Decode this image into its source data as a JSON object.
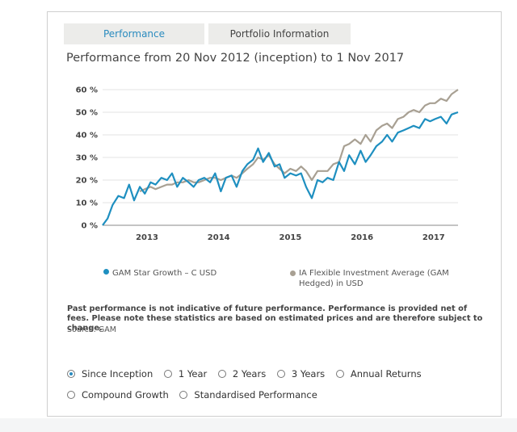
{
  "tabs": [
    {
      "label": "Performance",
      "active": true
    },
    {
      "label": "Portfolio Information",
      "active": false
    }
  ],
  "title": "Performance from 20 Nov 2012 (inception) to 1 Nov 2017",
  "chart_data": {
    "type": "line",
    "title": "Performance from 20 Nov 2012 (inception) to 1 Nov 2017",
    "xlabel": "",
    "ylabel": "",
    "ylim": [
      0,
      60
    ],
    "xlim": [
      2012.88,
      2017.84
    ],
    "y_ticks": [
      0,
      10,
      20,
      30,
      40,
      50,
      60
    ],
    "y_tick_labels": [
      "0 %",
      "10 %",
      "20 %",
      "30 %",
      "40 %",
      "50 %",
      "60 %"
    ],
    "x_tick_positions": [
      2013.5,
      2014.5,
      2015.5,
      2016.5,
      2017.5
    ],
    "x_tick_labels": [
      "2013",
      "2014",
      "2015",
      "2016",
      "2017"
    ],
    "grid": "horizontal",
    "series": [
      {
        "name": "GAM Star Growth – C USD",
        "color": "#1e8fc0",
        "x": [
          2012.88,
          2012.95,
          2013.02,
          2013.1,
          2013.18,
          2013.25,
          2013.32,
          2013.4,
          2013.47,
          2013.55,
          2013.62,
          2013.7,
          2013.78,
          2013.85,
          2013.92,
          2014.0,
          2014.08,
          2014.15,
          2014.22,
          2014.3,
          2014.38,
          2014.45,
          2014.53,
          2014.6,
          2014.68,
          2014.75,
          2014.83,
          2014.9,
          2014.98,
          2015.05,
          2015.12,
          2015.2,
          2015.28,
          2015.35,
          2015.42,
          2015.5,
          2015.58,
          2015.65,
          2015.72,
          2015.8,
          2015.88,
          2015.95,
          2016.02,
          2016.1,
          2016.18,
          2016.25,
          2016.32,
          2016.4,
          2016.48,
          2016.55,
          2016.62,
          2016.7,
          2016.78,
          2016.85,
          2016.92,
          2017.0,
          2017.08,
          2017.15,
          2017.22,
          2017.3,
          2017.38,
          2017.45,
          2017.52,
          2017.6,
          2017.68,
          2017.75,
          2017.84
        ],
        "values": [
          0,
          3,
          9,
          13,
          12,
          18,
          11,
          17,
          14,
          19,
          18,
          21,
          20,
          23,
          17,
          21,
          19,
          17,
          20,
          21,
          19,
          23,
          15,
          21,
          22,
          17,
          24,
          27,
          29,
          34,
          28,
          32,
          26,
          27,
          21,
          23,
          22,
          23,
          17,
          12,
          20,
          19,
          21,
          20,
          28,
          24,
          31,
          27,
          33,
          28,
          31,
          35,
          37,
          40,
          37,
          41,
          42,
          43,
          44,
          43,
          47,
          46,
          47,
          48,
          45,
          49,
          50
        ]
      },
      {
        "name": "IA Flexible Investment Average (GAM Hedged) in USD",
        "color": "#a8a093",
        "x": [
          2013.4,
          2013.47,
          2013.55,
          2013.62,
          2013.7,
          2013.78,
          2013.85,
          2013.92,
          2014.0,
          2014.08,
          2014.15,
          2014.22,
          2014.3,
          2014.38,
          2014.45,
          2014.53,
          2014.6,
          2014.68,
          2014.75,
          2014.83,
          2014.9,
          2014.98,
          2015.05,
          2015.12,
          2015.2,
          2015.28,
          2015.35,
          2015.42,
          2015.5,
          2015.58,
          2015.65,
          2015.72,
          2015.8,
          2015.88,
          2015.95,
          2016.02,
          2016.1,
          2016.18,
          2016.25,
          2016.32,
          2016.4,
          2016.48,
          2016.55,
          2016.62,
          2016.7,
          2016.78,
          2016.85,
          2016.92,
          2017.0,
          2017.08,
          2017.15,
          2017.22,
          2017.3,
          2017.38,
          2017.45,
          2017.52,
          2017.6,
          2017.68,
          2017.75,
          2017.84
        ],
        "values": [
          15,
          16,
          17,
          16,
          17,
          18,
          18,
          19,
          19,
          20,
          19,
          19,
          20,
          21,
          21,
          20,
          21,
          22,
          21,
          23,
          25,
          27,
          30,
          29,
          31,
          27,
          25,
          23,
          25,
          24,
          26,
          24,
          20,
          24,
          24,
          24,
          27,
          28,
          35,
          36,
          38,
          36,
          40,
          37,
          42,
          44,
          45,
          43,
          47,
          48,
          50,
          51,
          50,
          53,
          54,
          54,
          56,
          55,
          58,
          60
        ]
      }
    ]
  },
  "legend": [
    {
      "label": "GAM Star Growth – C USD",
      "color": "#1e8fc0"
    },
    {
      "label": "IA Flexible Investment Average (GAM Hedged) in USD",
      "color": "#a8a093"
    }
  ],
  "disclaimer": "Past performance is not indicative of future performance. Performance is provided net of fees. Please note these statistics are based on estimated prices and are therefore subject to change.",
  "source": "Source: GAM",
  "period_options": [
    {
      "label": "Since Inception",
      "checked": true
    },
    {
      "label": "1 Year",
      "checked": false
    },
    {
      "label": "2 Years",
      "checked": false
    },
    {
      "label": "3 Years",
      "checked": false
    },
    {
      "label": "Annual Returns",
      "checked": false
    },
    {
      "label": "Compound Growth",
      "checked": false
    },
    {
      "label": "Standardised Performance",
      "checked": false
    }
  ]
}
